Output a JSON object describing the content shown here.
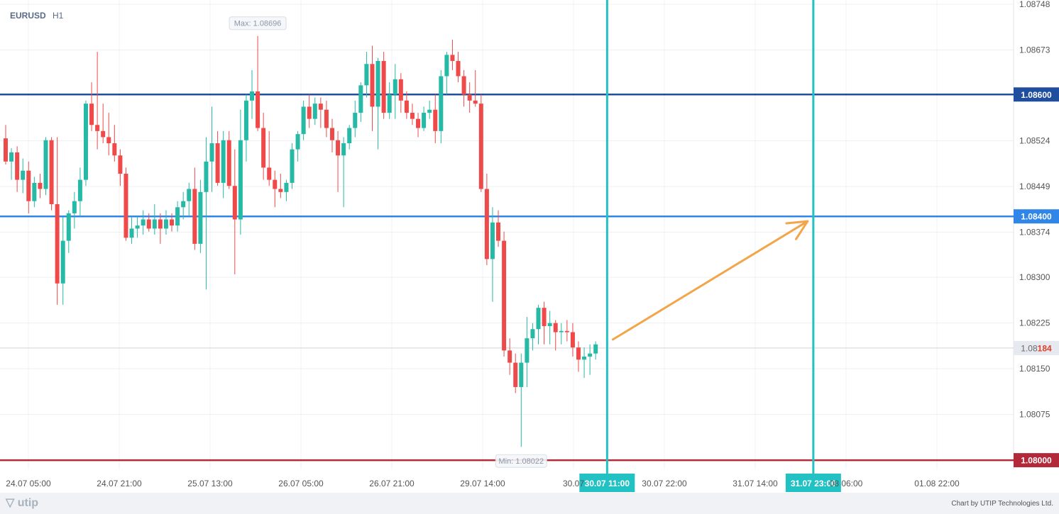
{
  "symbol": "EURUSD",
  "timeframe": "H1",
  "colors": {
    "bull": "#26b9a6",
    "bear": "#ef4a4a",
    "level_top": "#1f4e9e",
    "level_mid": "#2f86e8",
    "level_bottom": "#b22a3a",
    "vline": "#22c1c3",
    "arrow": "#f3a54a",
    "grid": "#edf0f3",
    "axis_text": "#555555"
  },
  "chart_data": {
    "type": "candlestick",
    "ylim": [
      1.07985,
      1.08755
    ],
    "y_ticks": [
      "1.08748",
      "1.08673",
      "1.08524",
      "1.08449",
      "1.08374",
      "1.08300",
      "1.08225",
      "1.08150",
      "1.08075"
    ],
    "x_ticks": [
      "24.07 05:00",
      "24.07 21:00",
      "25.07 13:00",
      "26.07 05:00",
      "26.07 21:00",
      "29.07 14:00",
      "30.07",
      "30.07 22:00",
      "31.07 14:00",
      "08 06:00",
      "01.08 22:00"
    ],
    "max_label": "Max: 1.08696",
    "min_label": "Min: 1.08022",
    "current_price": {
      "prefix": "1.08",
      "suffix": "184",
      "value": 1.08184
    },
    "levels": [
      {
        "label": "1.08600",
        "value": 1.086,
        "color_key": "level_top"
      },
      {
        "label": "1.08400",
        "value": 1.084,
        "color_key": "level_mid"
      },
      {
        "label": "1.08000",
        "value": 1.08,
        "color_key": "level_bottom"
      }
    ],
    "vlines": [
      {
        "label": "30.07 11:00",
        "index": 105
      },
      {
        "label": "31.07 23:00",
        "index": 141
      }
    ],
    "arrow": {
      "from": [
        106,
        1.08198
      ],
      "to": [
        140,
        1.08392
      ]
    },
    "candles": [
      [
        1.08528,
        1.0855,
        1.08485,
        1.0849
      ],
      [
        1.0849,
        1.08512,
        1.0846,
        1.08505
      ],
      [
        1.08505,
        1.08515,
        1.0844,
        1.0846
      ],
      [
        1.0846,
        1.08495,
        1.08438,
        1.08475
      ],
      [
        1.08475,
        1.0849,
        1.08405,
        1.08425
      ],
      [
        1.08425,
        1.08465,
        1.08415,
        1.08455
      ],
      [
        1.08455,
        1.0847,
        1.0843,
        1.08445
      ],
      [
        1.08445,
        1.0853,
        1.08435,
        1.08525
      ],
      [
        1.08525,
        1.0853,
        1.0841,
        1.0842
      ],
      [
        1.0842,
        1.0853,
        1.08255,
        1.0829
      ],
      [
        1.0829,
        1.084,
        1.08255,
        1.0836
      ],
      [
        1.0836,
        1.0841,
        1.0834,
        1.08405
      ],
      [
        1.08405,
        1.0844,
        1.0838,
        1.08425
      ],
      [
        1.08425,
        1.0848,
        1.084,
        1.0846
      ],
      [
        1.0846,
        1.0859,
        1.0845,
        1.08585
      ],
      [
        1.08585,
        1.0862,
        1.0854,
        1.0855
      ],
      [
        1.0855,
        1.0867,
        1.0851,
        1.0854
      ],
      [
        1.0854,
        1.08585,
        1.0852,
        1.0853
      ],
      [
        1.0853,
        1.0857,
        1.085,
        1.0852
      ],
      [
        1.0852,
        1.0855,
        1.0849,
        1.085
      ],
      [
        1.085,
        1.0851,
        1.0845,
        1.0847
      ],
      [
        1.0847,
        1.0848,
        1.0836,
        1.08365
      ],
      [
        1.08365,
        1.084,
        1.08355,
        1.0838
      ],
      [
        1.0838,
        1.084,
        1.08365,
        1.08385
      ],
      [
        1.08385,
        1.0841,
        1.0837,
        1.08395
      ],
      [
        1.08395,
        1.08405,
        1.08375,
        1.0838
      ],
      [
        1.0838,
        1.0842,
        1.0837,
        1.08395
      ],
      [
        1.08395,
        1.08405,
        1.08355,
        1.0838
      ],
      [
        1.0838,
        1.0841,
        1.0837,
        1.08395
      ],
      [
        1.08395,
        1.08405,
        1.08375,
        1.08385
      ],
      [
        1.08385,
        1.08425,
        1.08375,
        1.08415
      ],
      [
        1.08415,
        1.0844,
        1.08395,
        1.08425
      ],
      [
        1.08425,
        1.08455,
        1.084,
        1.08445
      ],
      [
        1.08445,
        1.0848,
        1.08345,
        1.08355
      ],
      [
        1.08355,
        1.0846,
        1.0834,
        1.0844
      ],
      [
        1.0844,
        1.0853,
        1.0828,
        1.0849
      ],
      [
        1.0849,
        1.0858,
        1.0844,
        1.0852
      ],
      [
        1.0852,
        1.0854,
        1.0845,
        1.08455
      ],
      [
        1.08455,
        1.0854,
        1.0843,
        1.08525
      ],
      [
        1.08525,
        1.0854,
        1.08445,
        1.0845
      ],
      [
        1.0845,
        1.0851,
        1.08305,
        1.08395
      ],
      [
        1.08395,
        1.08575,
        1.0837,
        1.08525
      ],
      [
        1.08525,
        1.086,
        1.0849,
        1.0859
      ],
      [
        1.0859,
        1.0864,
        1.0856,
        1.08605
      ],
      [
        1.08605,
        1.08696,
        1.0854,
        1.08545
      ],
      [
        1.08545,
        1.0857,
        1.0846,
        1.0848
      ],
      [
        1.0848,
        1.0854,
        1.0845,
        1.0846
      ],
      [
        1.0846,
        1.08475,
        1.08415,
        1.08445
      ],
      [
        1.08445,
        1.0847,
        1.0843,
        1.0844
      ],
      [
        1.0844,
        1.0846,
        1.08425,
        1.08455
      ],
      [
        1.08455,
        1.0852,
        1.08445,
        1.0851
      ],
      [
        1.0851,
        1.0854,
        1.0849,
        1.08535
      ],
      [
        1.08535,
        1.0859,
        1.08525,
        1.0858
      ],
      [
        1.0858,
        1.086,
        1.08545,
        1.0856
      ],
      [
        1.0856,
        1.08595,
        1.0855,
        1.08585
      ],
      [
        1.08585,
        1.08595,
        1.08545,
        1.08575
      ],
      [
        1.08575,
        1.0859,
        1.0853,
        1.08545
      ],
      [
        1.08545,
        1.0856,
        1.08505,
        1.08525
      ],
      [
        1.08525,
        1.0854,
        1.0844,
        1.085
      ],
      [
        1.085,
        1.0853,
        1.08415,
        1.0852
      ],
      [
        1.0852,
        1.0855,
        1.0851,
        1.08545
      ],
      [
        1.08545,
        1.0859,
        1.0853,
        1.0857
      ],
      [
        1.0857,
        1.0862,
        1.08555,
        1.08615
      ],
      [
        1.08615,
        1.0867,
        1.08595,
        1.0865
      ],
      [
        1.0865,
        1.0868,
        1.0854,
        1.0858
      ],
      [
        1.0858,
        1.0866,
        1.0851,
        1.08655
      ],
      [
        1.08655,
        1.0867,
        1.0856,
        1.0857
      ],
      [
        1.0857,
        1.0862,
        1.0856,
        1.086
      ],
      [
        1.086,
        1.0865,
        1.0856,
        1.08625
      ],
      [
        1.08625,
        1.08635,
        1.0857,
        1.0859
      ],
      [
        1.0859,
        1.08605,
        1.0856,
        1.0857
      ],
      [
        1.0857,
        1.08585,
        1.0855,
        1.0856
      ],
      [
        1.0856,
        1.0857,
        1.0853,
        1.08545
      ],
      [
        1.08545,
        1.0858,
        1.0854,
        1.0857
      ],
      [
        1.0857,
        1.0859,
        1.0856,
        1.08575
      ],
      [
        1.08575,
        1.086,
        1.0852,
        1.0854
      ],
      [
        1.0854,
        1.0864,
        1.0852,
        1.0863
      ],
      [
        1.0863,
        1.0867,
        1.086,
        1.08665
      ],
      [
        1.08665,
        1.0869,
        1.0864,
        1.08655
      ],
      [
        1.08655,
        1.0867,
        1.0862,
        1.0863
      ],
      [
        1.0863,
        1.0864,
        1.0858,
        1.086
      ],
      [
        1.086,
        1.0862,
        1.0857,
        1.0859
      ],
      [
        1.0859,
        1.0864,
        1.0858,
        1.08585
      ],
      [
        1.08585,
        1.086,
        1.0844,
        1.08445
      ],
      [
        1.08445,
        1.0847,
        1.0832,
        1.0833
      ],
      [
        1.0833,
        1.08415,
        1.0826,
        1.0839
      ],
      [
        1.0839,
        1.0841,
        1.0835,
        1.0836
      ],
      [
        1.0836,
        1.08375,
        1.0817,
        1.0818
      ],
      [
        1.0818,
        1.082,
        1.0814,
        1.0816
      ],
      [
        1.0816,
        1.08175,
        1.0811,
        1.0812
      ],
      [
        1.0812,
        1.08175,
        1.08022,
        1.0816
      ],
      [
        1.0816,
        1.08235,
        1.0812,
        1.082
      ],
      [
        1.082,
        1.08225,
        1.0818,
        1.08215
      ],
      [
        1.08215,
        1.08255,
        1.0819,
        1.0825
      ],
      [
        1.0825,
        1.0826,
        1.0819,
        1.0822
      ],
      [
        1.0822,
        1.08245,
        1.0819,
        1.08225
      ],
      [
        1.08225,
        1.0823,
        1.0818,
        1.0821
      ],
      [
        1.0821,
        1.08225,
        1.0819,
        1.08212
      ],
      [
        1.08212,
        1.0823,
        1.08195,
        1.0821
      ],
      [
        1.0821,
        1.08225,
        1.0817,
        1.08185
      ],
      [
        1.08185,
        1.08195,
        1.08145,
        1.08165
      ],
      [
        1.08165,
        1.08185,
        1.08135,
        1.0817
      ],
      [
        1.0817,
        1.0819,
        1.0814,
        1.08175
      ],
      [
        1.08175,
        1.08195,
        1.08165,
        1.0819
      ]
    ]
  },
  "footer": {
    "logo": "utip",
    "credit": "Chart by UTIP Technologies Ltd."
  }
}
